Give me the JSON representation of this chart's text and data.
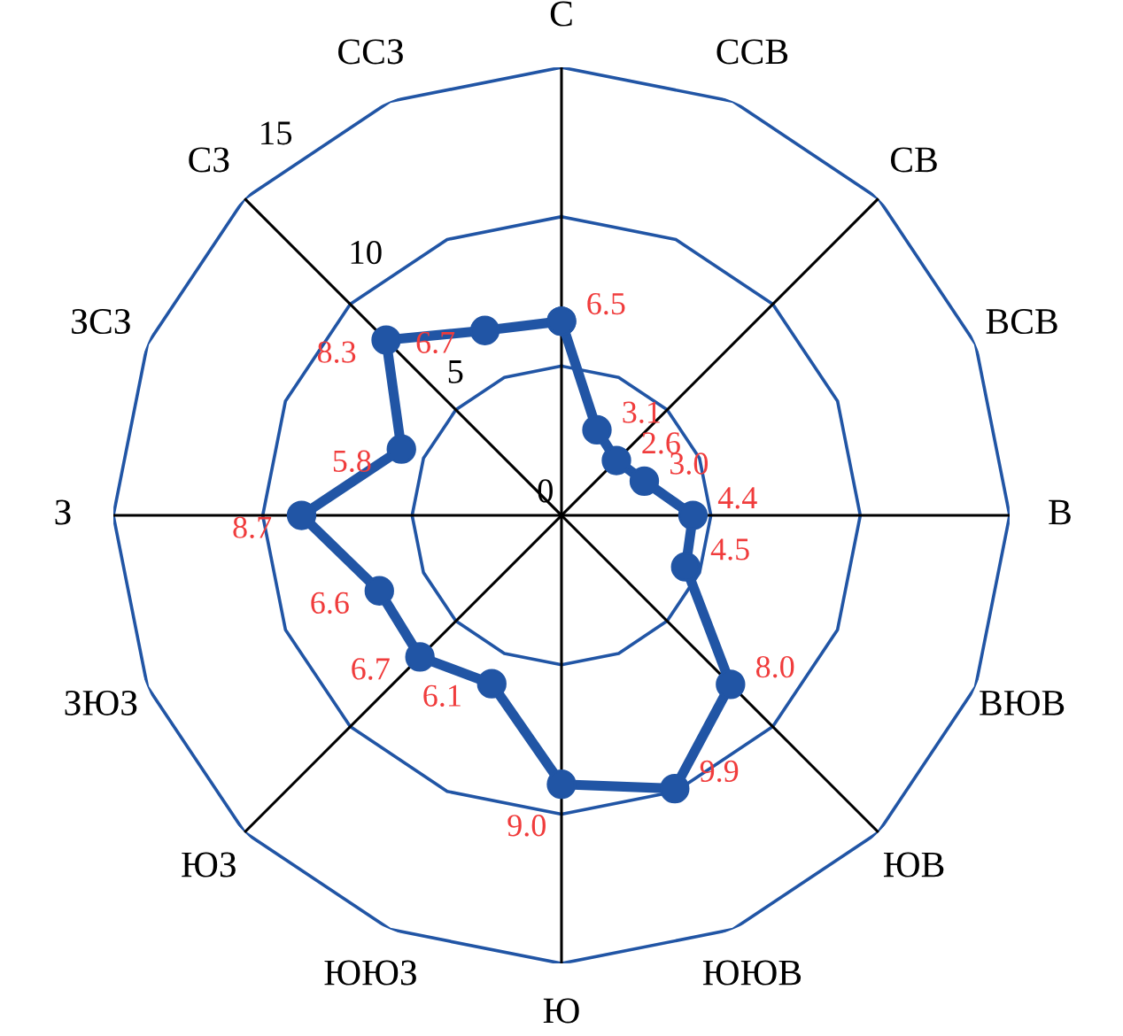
{
  "chart_data": {
    "type": "radar",
    "categories": [
      "С",
      "ССВ",
      "СВ",
      "ВСВ",
      "В",
      "ВЮВ",
      "ЮВ",
      "ЮЮВ",
      "Ю",
      "ЮЮЗ",
      "ЮЗ",
      "ЗЮЗ",
      "З",
      "ЗСЗ",
      "СЗ",
      "ССЗ"
    ],
    "series": [
      {
        "color": "#2155a5",
        "values": [
          6.5,
          3.1,
          2.6,
          3.0,
          4.4,
          4.5,
          8.0,
          9.9,
          9.0,
          6.1,
          6.7,
          6.6,
          8.7,
          5.8,
          8.3,
          6.7
        ],
        "value_labels": [
          "6.5",
          "3.1",
          "2.6",
          "3.0",
          "4.4",
          "4.5",
          "8.0",
          "9.9",
          "9.0",
          "6.1",
          "6.7",
          "6.6",
          "8.7",
          "5.8",
          "8.3",
          "6.7"
        ]
      }
    ],
    "ylim": [
      0,
      15
    ],
    "yticks": [
      0,
      5,
      10,
      15
    ],
    "marker": "circle",
    "grid": true,
    "legend": false
  }
}
